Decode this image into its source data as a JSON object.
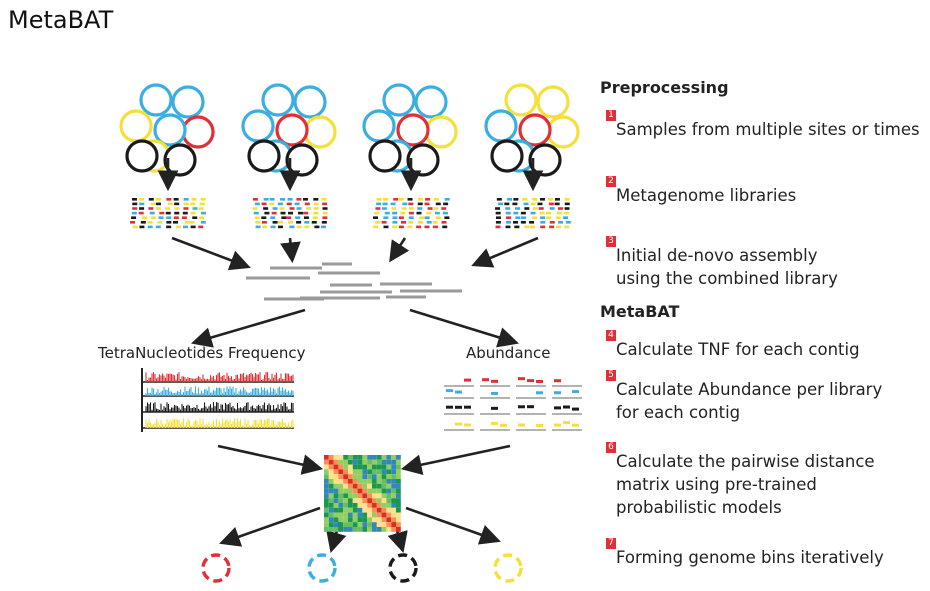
{
  "title": "MetaBAT",
  "diagram": {
    "left_label": "TetraNucleotides Frequency",
    "right_label": "Abundance"
  },
  "sections": {
    "preprocessing": "Preprocessing",
    "metabat": "MetaBAT"
  },
  "steps": [
    {
      "num": "1",
      "text": "Samples from multiple sites or times"
    },
    {
      "num": "2",
      "text": "Metagenome libraries"
    },
    {
      "num": "3",
      "text": "Initial de-novo assembly\nusing the combined library"
    },
    {
      "num": "4",
      "text": "Calculate TNF for each contig"
    },
    {
      "num": "5",
      "text": "Calculate Abundance per library\nfor each contig"
    },
    {
      "num": "6",
      "text": "Calculate the pairwise distance\nmatrix using pre-trained\nprobabilistic models"
    },
    {
      "num": "7",
      "text": "Forming genome bins iteratively"
    }
  ],
  "colors": {
    "blue": "#3aaee3",
    "yellow": "#f5e03a",
    "red": "#e03036",
    "black": "#1a1a1a",
    "gray": "#9a9a9a"
  }
}
